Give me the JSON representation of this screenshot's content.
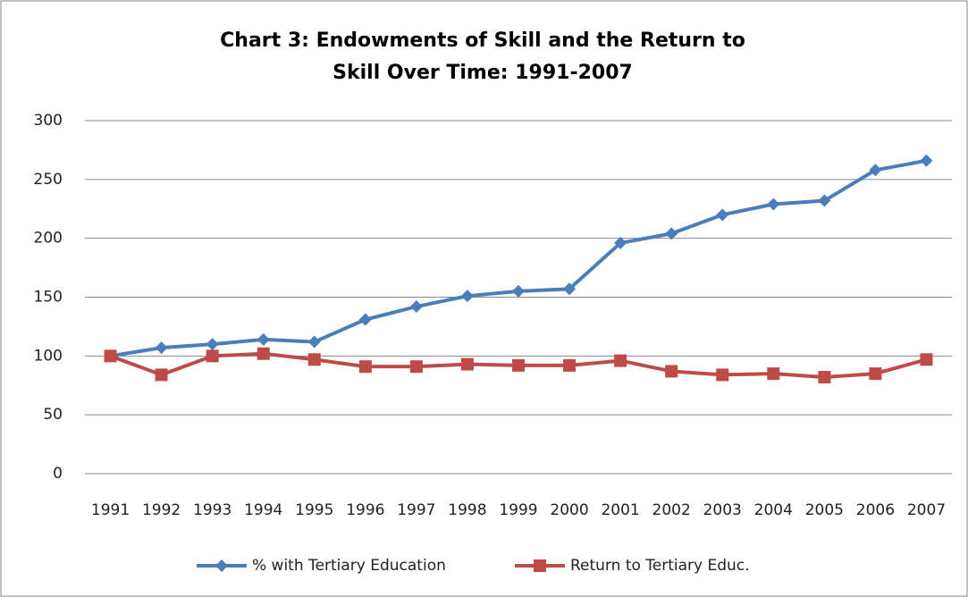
{
  "chart_data": {
    "type": "line",
    "title": "Chart 3: Endowments of Skill and the Return to Skill Over Time: 1991-2007",
    "categories": [
      "1991",
      "1992",
      "1993",
      "1994",
      "1995",
      "1996",
      "1997",
      "1998",
      "1999",
      "2000",
      "2001",
      "2002",
      "2003",
      "2004",
      "2005",
      "2006",
      "2007"
    ],
    "series": [
      {
        "name": "% with Tertiary Education",
        "color": "#4a7ebb",
        "marker": "diamond",
        "values": [
          100,
          107,
          110,
          114,
          112,
          131,
          142,
          151,
          155,
          157,
          196,
          204,
          220,
          229,
          232,
          258,
          266
        ]
      },
      {
        "name": "Return to Tertiary Educ.",
        "color": "#be4b48",
        "marker": "square",
        "values": [
          100,
          84,
          100,
          102,
          97,
          91,
          91,
          93,
          92,
          92,
          96,
          87,
          84,
          85,
          82,
          85,
          97
        ]
      }
    ],
    "ylim": [
      0,
      300
    ],
    "yticks": [
      0,
      50,
      100,
      150,
      200,
      250,
      300
    ],
    "grid": true,
    "legend": "bottom"
  }
}
